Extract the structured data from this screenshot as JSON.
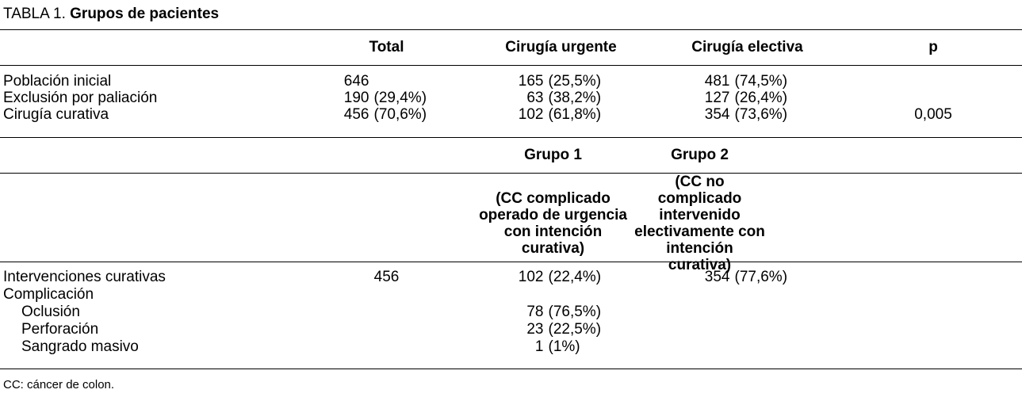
{
  "page": {
    "background": "#ffffff",
    "text_color": "#000000"
  },
  "table": {
    "title_prefix": "TABLA 1.",
    "title_bold": "Grupos de pacientes",
    "footnote": "CC: cáncer de colon.",
    "section1": {
      "headers": {
        "total": "Total",
        "urgente": "Cirugía urgente",
        "electiva": "Cirugía electiva",
        "p": "p"
      },
      "rows": [
        {
          "label": "Población inicial",
          "total_n": "646",
          "total_p": "",
          "urgente_n": "165",
          "urgente_p": "(25,5%)",
          "electiva_n": "481",
          "electiva_p": "(74,5%)",
          "p": ""
        },
        {
          "label": "Exclusión por paliación",
          "total_n": "190",
          "total_p": "(29,4%)",
          "urgente_n": "63",
          "urgente_p": "(38,2%)",
          "electiva_n": "127",
          "electiva_p": "(26,4%)",
          "p": ""
        },
        {
          "label": "Cirugía curativa",
          "total_n": "456",
          "total_p": "(70,6%)",
          "urgente_n": "102",
          "urgente_p": "(61,8%)",
          "electiva_n": "354",
          "electiva_p": "(73,6%)",
          "p": "0,005"
        }
      ]
    },
    "section2": {
      "group1_title": "Grupo 1",
      "group2_title": "Grupo 2",
      "group1_desc_lines": [
        "(CC complicado",
        "operado de urgencia",
        "con intención curativa)"
      ],
      "group2_desc_lines": [
        "(CC no complicado",
        "intervenido",
        "electivamente con",
        "intención curativa)"
      ],
      "rows": [
        {
          "label": "Intervenciones curativas",
          "indent": false,
          "total": "456",
          "g1_n": "102",
          "g1_p": "(22,4%)",
          "g2_n": "354",
          "g2_p": "(77,6%)"
        },
        {
          "label": "Complicación",
          "indent": false,
          "total": "",
          "g1_n": "",
          "g1_p": "",
          "g2_n": "",
          "g2_p": ""
        },
        {
          "label": "Oclusión",
          "indent": true,
          "total": "",
          "g1_n": "78",
          "g1_p": "(76,5%)",
          "g2_n": "",
          "g2_p": ""
        },
        {
          "label": "Perforación",
          "indent": true,
          "total": "",
          "g1_n": "23",
          "g1_p": "(22,5%)",
          "g2_n": "",
          "g2_p": ""
        },
        {
          "label": "Sangrado masivo",
          "indent": true,
          "total": "",
          "g1_n": "1",
          "g1_p": "(1%)",
          "g2_n": "",
          "g2_p": ""
        }
      ]
    }
  }
}
